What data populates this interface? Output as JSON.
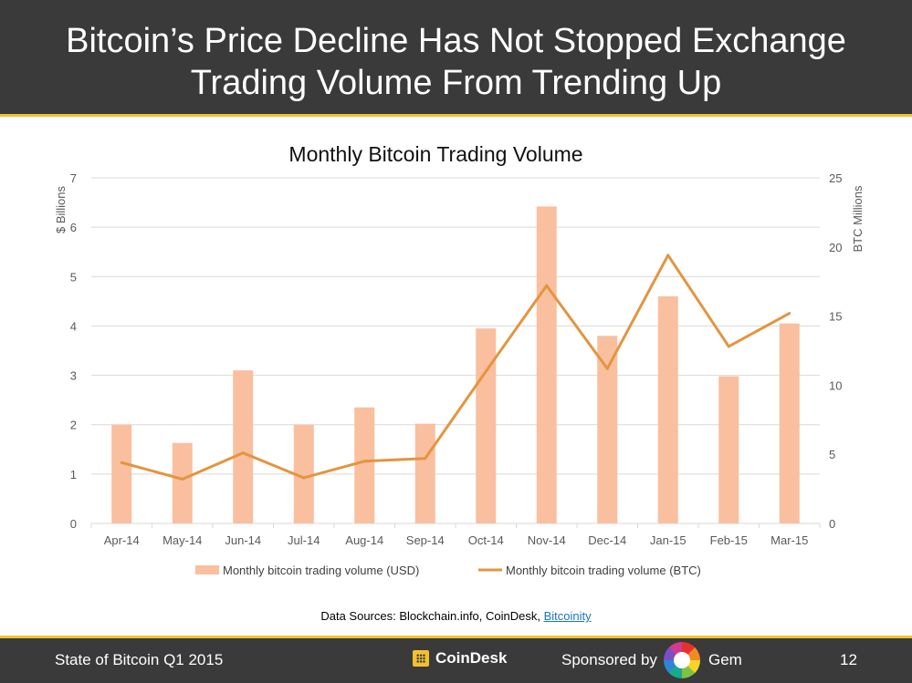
{
  "header": {
    "title_line1": "Bitcoin’s Price Decline Has Not Stopped Exchange",
    "title_line2": "Trading Volume From Trending Up"
  },
  "colors": {
    "header_bg": "#3a3a3a",
    "accent": "#f2c12e",
    "bar": "#f9bf9f",
    "line": "#e3953f",
    "grid": "#d9d9d9"
  },
  "chart_data": {
    "type": "bar",
    "title": "Monthly Bitcoin Trading Volume",
    "categories": [
      "Apr-14",
      "May-14",
      "Jun-14",
      "Jul-14",
      "Aug-14",
      "Sep-14",
      "Oct-14",
      "Nov-14",
      "Dec-14",
      "Jan-15",
      "Feb-15",
      "Mar-15"
    ],
    "series": [
      {
        "name": "Monthly bitcoin trading volume (USD)",
        "type": "bar",
        "axis": "left",
        "values": [
          2.0,
          1.63,
          3.1,
          2.0,
          2.35,
          2.02,
          3.95,
          6.42,
          3.8,
          4.6,
          2.98,
          4.05
        ]
      },
      {
        "name": "Monthly bitcoin trading volume (BTC)",
        "type": "line",
        "axis": "right",
        "values": [
          4.4,
          3.2,
          5.1,
          3.3,
          4.5,
          4.7,
          11.0,
          17.2,
          11.2,
          19.4,
          12.8,
          15.2
        ]
      }
    ],
    "ylabel": "$ Billions",
    "ylim": [
      0,
      7
    ],
    "yticks": [
      "0",
      "1",
      "2",
      "3",
      "4",
      "5",
      "6",
      "7"
    ],
    "y2label": "BTC Millions",
    "y2lim": [
      0,
      25
    ],
    "y2ticks": [
      "0",
      "5",
      "10",
      "15",
      "20",
      "25"
    ],
    "grid": true,
    "legend": "bottom"
  },
  "sources": {
    "prefix": "Data Sources: Blockchain.info, CoinDesk, ",
    "link": "Bitcoinity"
  },
  "footer": {
    "left": "State of Bitcoin Q1 2015",
    "brand": "CoinDesk",
    "sponsor": "Sponsored by",
    "gem": "Gem",
    "page": "12"
  }
}
